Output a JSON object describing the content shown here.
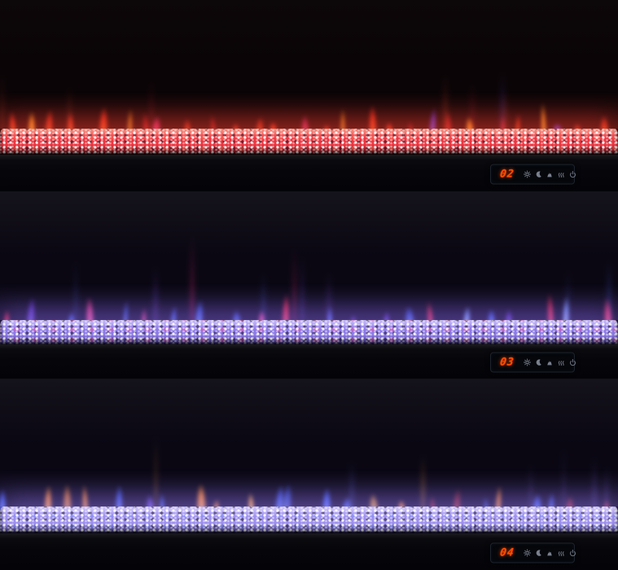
{
  "image": {
    "description": "Three stacked close-up views of a linear wall-mount electric fireplace showing different flame/ember color modes, each with an LED touch control display",
    "frame_color": "#040408"
  },
  "panels": [
    {
      "name": "red-flame-mode",
      "display": {
        "value": "02",
        "digit_color": "#ff4d00",
        "icon_color": "#8f96a6",
        "icons": [
          "brightness-icon",
          "sleep-timer-icon",
          "flame-effect-icon",
          "heater-icon",
          "power-icon"
        ]
      },
      "theme": {
        "seed": 11,
        "wall_top": "#0c0709",
        "wall_mid": "#0a0406",
        "wall_glow": "#2b070a",
        "bed_light": "#ff9d8a",
        "bed_main": "#ee3540",
        "bed_dark": "#6e0d16",
        "bed_accent": "rgba(255,120,90,0.45)",
        "glow": "rgba(255,62,45,0.55)",
        "flame_count": 28,
        "min_h": 18,
        "max_h": 56,
        "wisp_count": 7,
        "wisp_min": 55,
        "wisp_max": 95,
        "flames": [
          {
            "core": "#ffcf4a",
            "mid": "#ff8414",
            "weight": 0.3
          },
          {
            "core": "#ff7a22",
            "mid": "#ef2410",
            "weight": 0.34
          },
          {
            "core": "#ff3a2a",
            "mid": "#b00d12",
            "weight": 0.16
          },
          {
            "core": "#ff4b7e",
            "mid": "#cc1c5a",
            "weight": 0.08
          },
          {
            "core": "#6f7dff",
            "mid": "#5a2fe0",
            "weight": 0.12
          }
        ],
        "wisps": [
          "#c23718",
          "#4a3adf",
          "#a01225"
        ]
      }
    },
    {
      "name": "blue-pink-flame-mode",
      "display": {
        "value": "03",
        "digit_color": "#ff4d00",
        "icon_color": "#8f96a6",
        "icons": [
          "brightness-icon",
          "sleep-timer-icon",
          "flame-effect-icon",
          "heater-icon",
          "power-icon"
        ]
      },
      "theme": {
        "seed": 22,
        "wall_top": "#15131b",
        "wall_mid": "#0a0712",
        "wall_glow": "#1c1030",
        "bed_light": "#cfc2ff",
        "bed_main": "#8d7ae8",
        "bed_dark": "#443494",
        "bed_accent": "rgba(255,70,150,0.38)",
        "glow": "rgba(142,112,255,0.5)",
        "flame_count": 22,
        "min_h": 20,
        "max_h": 62,
        "wisp_count": 9,
        "wisp_min": 70,
        "wisp_max": 125,
        "flames": [
          {
            "core": "#7fa0ff",
            "mid": "#2f4ae0",
            "weight": 0.38
          },
          {
            "core": "#8a7aff",
            "mid": "#5a2ad0",
            "weight": 0.12
          },
          {
            "core": "#ff4a52",
            "mid": "#d01830",
            "weight": 0.28
          },
          {
            "core": "#ff7ab0",
            "mid": "#e0307a",
            "weight": 0.14
          },
          {
            "core": "#cfe0ff",
            "mid": "#6a8aff",
            "weight": 0.08
          }
        ],
        "wisps": [
          "#3a55e8",
          "#6a3ad0",
          "#d0206a"
        ]
      }
    },
    {
      "name": "orange-blue-flame-mode",
      "display": {
        "value": "04",
        "digit_color": "#ff4d00",
        "icon_color": "#8f96a6",
        "icons": [
          "brightness-icon",
          "sleep-timer-icon",
          "flame-effect-icon",
          "heater-icon",
          "power-icon"
        ]
      },
      "theme": {
        "seed": 33,
        "wall_top": "#14121a",
        "wall_mid": "#0a0713",
        "wall_glow": "#201335",
        "bed_light": "#d8cdff",
        "bed_main": "#9e90ef",
        "bed_dark": "#4a3f8e",
        "bed_accent": "rgba(120,140,255,0.4)",
        "glow": "rgba(150,125,255,0.5)",
        "flame_count": 24,
        "min_h": 20,
        "max_h": 55,
        "wisp_count": 7,
        "wisp_min": 60,
        "wisp_max": 105,
        "flames": [
          {
            "core": "#ffb042",
            "mid": "#f07a10",
            "weight": 0.42
          },
          {
            "core": "#ffd87a",
            "mid": "#ffa020",
            "weight": 0.12
          },
          {
            "core": "#6a8aff",
            "mid": "#2f4ae0",
            "weight": 0.3
          },
          {
            "core": "#8a7af0",
            "mid": "#5a3ad0",
            "weight": 0.08
          },
          {
            "core": "#c03a20",
            "mid": "#8a1a10",
            "weight": 0.08
          }
        ],
        "wisps": [
          "#d9821f",
          "#4a5ae0",
          "#7a5ae0"
        ]
      }
    }
  ]
}
